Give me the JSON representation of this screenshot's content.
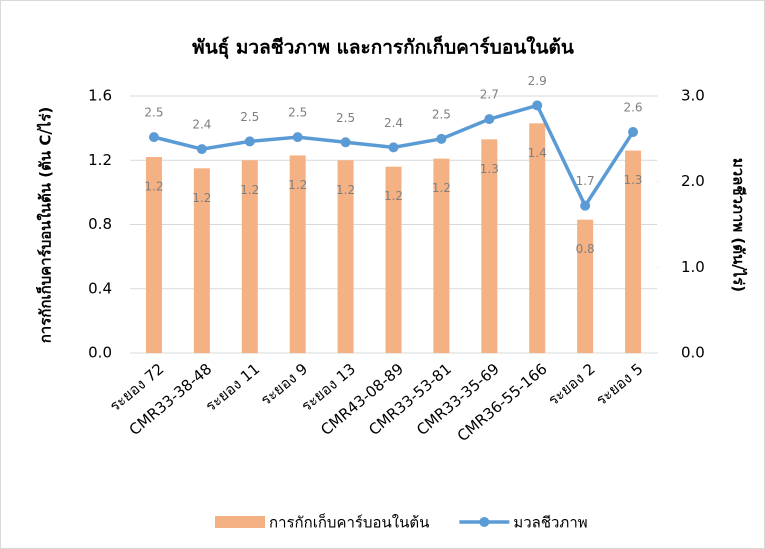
{
  "chart_data": {
    "type": "bar-line",
    "title": "พันธุ์ มวลชีวภาพ และการกักเก็บคาร์บอนในต้น",
    "ylabel": "การกักเก็บคาร์บอนในต้น (ตัน C/ไร่)",
    "y2label": "มวลชีวภาพ (ตัน/ไร่)",
    "categories": [
      "ระยอง 72",
      "CMR33-38-48",
      "ระยอง 11",
      "ระยอง 9",
      "ระยอง 13",
      "CMR43-08-89",
      "CMR33-53-81",
      "CMR33-35-69",
      "CMR36-55-166",
      "ระยอง 2",
      "ระยอง 5"
    ],
    "series": [
      {
        "name": "การกักเก็บคาร์บอนในต้น",
        "type": "bar",
        "color": "#f4b183",
        "values": [
          1.22,
          1.15,
          1.2,
          1.23,
          1.2,
          1.16,
          1.21,
          1.33,
          1.43,
          0.83,
          1.26
        ],
        "value_labels": [
          "1.2",
          "1.2",
          "1.2",
          "1.2",
          "1.2",
          "1.2",
          "1.2",
          "1.3",
          "1.4",
          "0.8",
          "1.3"
        ]
      },
      {
        "name": "มวลชีวภาพ",
        "type": "line",
        "axis": "y2",
        "color": "#5b9bd5",
        "values": [
          2.52,
          2.38,
          2.47,
          2.52,
          2.46,
          2.4,
          2.5,
          2.73,
          2.89,
          1.72,
          2.58
        ],
        "value_labels": [
          "2.5",
          "2.4",
          "2.5",
          "2.5",
          "2.5",
          "2.4",
          "2.5",
          "2.7",
          "2.9",
          "1.7",
          "2.6"
        ]
      }
    ],
    "ylim": [
      0,
      1.6
    ],
    "yticks": [
      {
        "value": 0,
        "label": "0.0"
      },
      0.4,
      0.8,
      1.2,
      1.6
    ],
    "y2lim": [
      0,
      3
    ],
    "y2ticks": [
      {
        "value": 0,
        "label": "0.0"
      },
      {
        "value": 1,
        "label": "1.0"
      },
      {
        "value": 2,
        "label": "2.0"
      },
      {
        "value": 3,
        "label": "3.0"
      }
    ],
    "grid": true,
    "legend": "bottom"
  }
}
